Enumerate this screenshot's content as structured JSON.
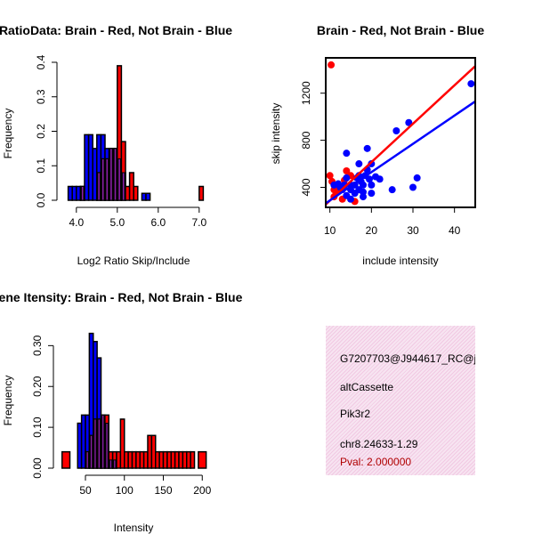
{
  "chart_data": [
    {
      "type": "bar",
      "title": "RatioData: Brain - Red, Not Brain - Blue",
      "xlabel": "Log2 Ratio Skip/Include",
      "ylabel": "Frequency",
      "xlim": [
        3.7,
        7.2
      ],
      "ylim": [
        0,
        0.4
      ],
      "xticks": [
        "4.0",
        "5.0",
        "6.0",
        "7.0"
      ],
      "yticks": [
        "0.0",
        "0.1",
        "0.2",
        "0.3",
        "0.4"
      ],
      "series": [
        {
          "name": "Not Brain",
          "color": "#0000ff",
          "bins": [
            [
              3.8,
              3.9,
              0.04
            ],
            [
              3.9,
              4.0,
              0.04
            ],
            [
              4.0,
              4.1,
              0.04
            ],
            [
              4.1,
              4.2,
              0.04
            ],
            [
              4.2,
              4.3,
              0.19
            ],
            [
              4.3,
              4.4,
              0.19
            ],
            [
              4.4,
              4.5,
              0.15
            ],
            [
              4.5,
              4.6,
              0.19
            ],
            [
              4.6,
              4.7,
              0.19
            ],
            [
              4.7,
              4.8,
              0.15
            ],
            [
              4.8,
              4.9,
              0.15
            ],
            [
              4.9,
              5.0,
              0.15
            ],
            [
              5.0,
              5.1,
              0.12
            ],
            [
              5.1,
              5.2,
              0.08
            ],
            [
              5.6,
              5.7,
              0.02
            ],
            [
              5.7,
              5.8,
              0.02
            ]
          ]
        },
        {
          "name": "Brain",
          "color": "#ff0000",
          "bins": [
            [
              4.1,
              4.2,
              0.04
            ],
            [
              4.5,
              4.6,
              0.08
            ],
            [
              4.6,
              4.7,
              0.12
            ],
            [
              4.7,
              4.8,
              0.12
            ],
            [
              4.8,
              4.9,
              0.15
            ],
            [
              4.9,
              5.0,
              0.15
            ],
            [
              5.0,
              5.1,
              0.39
            ],
            [
              5.1,
              5.2,
              0.17
            ],
            [
              5.2,
              5.3,
              0.04
            ],
            [
              5.3,
              5.4,
              0.08
            ],
            [
              5.4,
              5.5,
              0.04
            ],
            [
              7.0,
              7.1,
              0.04
            ]
          ]
        }
      ]
    },
    {
      "type": "scatter",
      "title": "Brain - Red, Not Brain - Blue",
      "xlabel": "include intensity",
      "ylabel": "skip intensity",
      "xlim": [
        9,
        45
      ],
      "ylim": [
        230,
        1500
      ],
      "xticks": [
        10,
        20,
        30,
        40
      ],
      "yticks": [
        400,
        800,
        1200
      ],
      "series": [
        {
          "name": "Brain",
          "color": "#ff0000",
          "points": [
            [
              10.3,
              1440
            ],
            [
              10,
              500
            ],
            [
              10.5,
              450
            ],
            [
              11,
              380
            ],
            [
              11.5,
              350
            ],
            [
              12,
              420
            ],
            [
              12.5,
              380
            ],
            [
              13,
              300
            ],
            [
              13.5,
              460
            ],
            [
              14,
              540
            ],
            [
              15,
              500
            ],
            [
              16,
              280
            ],
            [
              11,
              320
            ],
            [
              12,
              390
            ]
          ],
          "fit": [
            [
              9,
              255
            ],
            [
              45,
              1430
            ]
          ]
        },
        {
          "name": "Not Brain",
          "color": "#0000ff",
          "points": [
            [
              11,
              420
            ],
            [
              12,
              430
            ],
            [
              12.5,
              400
            ],
            [
              13,
              380
            ],
            [
              13.5,
              420
            ],
            [
              14,
              330
            ],
            [
              14,
              690
            ],
            [
              15,
              380
            ],
            [
              15,
              420
            ],
            [
              16,
              350
            ],
            [
              16,
              420
            ],
            [
              16.5,
              480
            ],
            [
              17,
              600
            ],
            [
              17,
              380
            ],
            [
              17.5,
              450
            ],
            [
              18,
              360
            ],
            [
              18,
              420
            ],
            [
              18.5,
              500
            ],
            [
              19,
              730
            ],
            [
              19,
              550
            ],
            [
              19.5,
              470
            ],
            [
              20,
              600
            ],
            [
              20,
              420
            ],
            [
              20,
              350
            ],
            [
              21,
              490
            ],
            [
              22,
              470
            ],
            [
              25,
              380
            ],
            [
              26,
              880
            ],
            [
              29,
              950
            ],
            [
              30,
              400
            ],
            [
              31,
              480
            ],
            [
              44,
              1280
            ],
            [
              15,
              300
            ],
            [
              18,
              320
            ],
            [
              17,
              500
            ],
            [
              14,
              480
            ]
          ],
          "fit": [
            [
              9,
              265
            ],
            [
              45,
              1130
            ]
          ]
        }
      ]
    },
    {
      "type": "bar",
      "title": "Gene Itensity: Brain - Red, Not Brain - Blue",
      "xlabel": "Intensity",
      "ylabel": "Frequency",
      "xlim": [
        18,
        210
      ],
      "ylim": [
        0,
        0.34
      ],
      "xticks": [
        "50",
        "100",
        "150",
        "200"
      ],
      "yticks": [
        "0.00",
        "0.10",
        "0.20",
        "0.30"
      ],
      "series": [
        {
          "name": "Not Brain",
          "color": "#0000ff",
          "bins": [
            [
              40,
              45,
              0.11
            ],
            [
              45,
              50,
              0.13
            ],
            [
              50,
              55,
              0.13
            ],
            [
              55,
              60,
              0.33
            ],
            [
              60,
              65,
              0.31
            ],
            [
              65,
              70,
              0.27
            ],
            [
              70,
              75,
              0.13
            ],
            [
              75,
              80,
              0.11
            ],
            [
              80,
              85,
              0.02
            ],
            [
              85,
              90,
              0.02
            ]
          ]
        },
        {
          "name": "Brain",
          "color": "#ff0000",
          "bins": [
            [
              20,
              30,
              0.04
            ],
            [
              50,
              55,
              0.04
            ],
            [
              55,
              60,
              0.08
            ],
            [
              60,
              65,
              0.12
            ],
            [
              65,
              70,
              0.12
            ],
            [
              70,
              75,
              0.13
            ],
            [
              75,
              80,
              0.13
            ],
            [
              80,
              85,
              0.04
            ],
            [
              85,
              90,
              0.04
            ],
            [
              90,
              95,
              0.04
            ],
            [
              95,
              100,
              0.12
            ],
            [
              100,
              105,
              0.04
            ],
            [
              105,
              110,
              0.04
            ],
            [
              110,
              115,
              0.04
            ],
            [
              115,
              120,
              0.04
            ],
            [
              120,
              125,
              0.04
            ],
            [
              125,
              130,
              0.04
            ],
            [
              130,
              135,
              0.08
            ],
            [
              135,
              140,
              0.08
            ],
            [
              140,
              145,
              0.04
            ],
            [
              145,
              150,
              0.04
            ],
            [
              150,
              155,
              0.04
            ],
            [
              155,
              160,
              0.04
            ],
            [
              160,
              165,
              0.04
            ],
            [
              165,
              170,
              0.04
            ],
            [
              170,
              175,
              0.04
            ],
            [
              175,
              180,
              0.04
            ],
            [
              180,
              185,
              0.04
            ],
            [
              185,
              190,
              0.04
            ],
            [
              195,
              205,
              0.04
            ]
          ]
        }
      ]
    }
  ],
  "info_panel": {
    "id": "G7207703@J944617_RC@j",
    "event_type": "altCassette",
    "gene": "Pik3r2",
    "location": "chr8.24633-1.29",
    "pval": "Pval: 2.000000"
  },
  "colors": {
    "brain": "#ff0000",
    "not_brain": "#0000ff",
    "overlap": "#8a1fa6"
  }
}
